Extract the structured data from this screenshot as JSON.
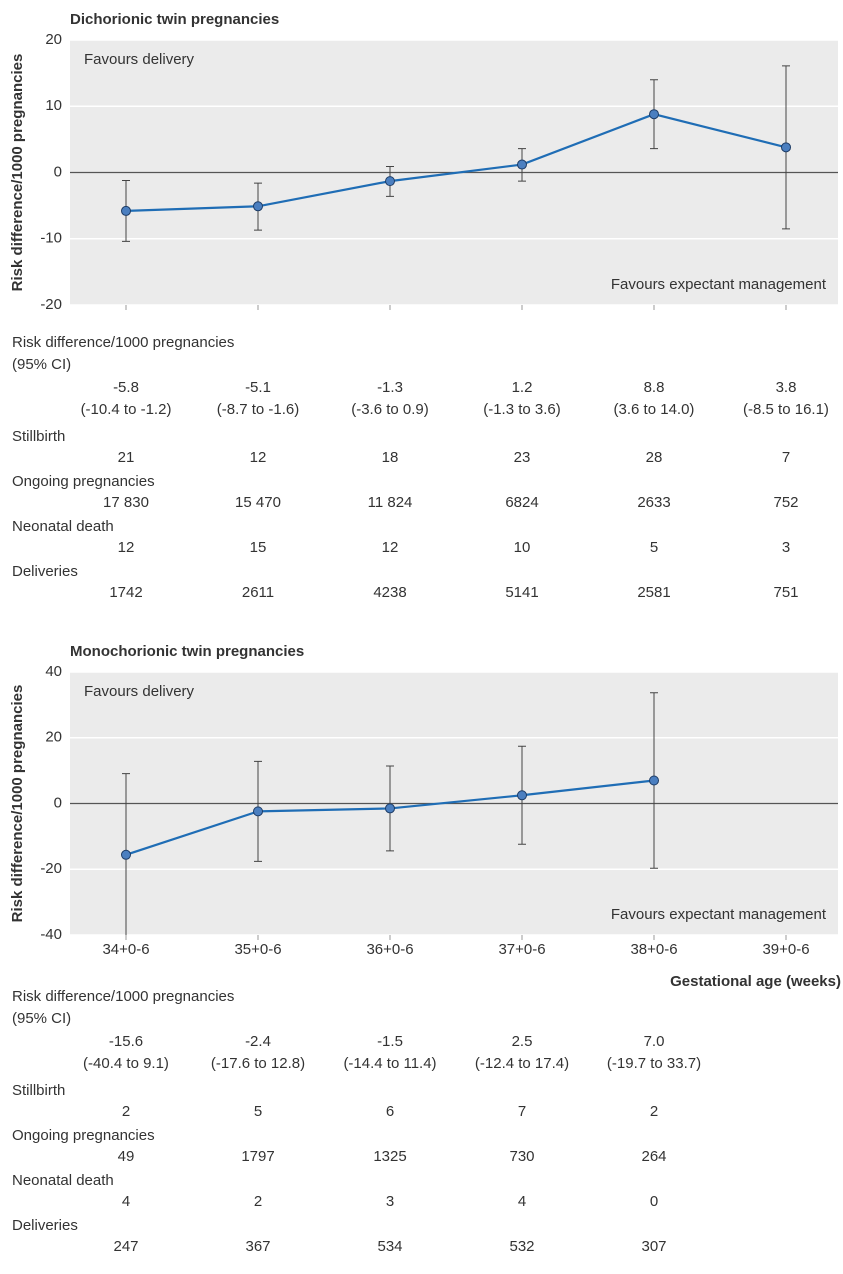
{
  "chart_data": [
    {
      "type": "line",
      "title": "Dichorionic twin pregnancies",
      "ylabel": "Risk difference/1000 pregnancies",
      "annotations": [
        "Favours delivery",
        "Favours expectant management"
      ],
      "categories": [
        null,
        null,
        null,
        null,
        null,
        null
      ],
      "values": [
        -5.8,
        -5.1,
        -1.3,
        1.2,
        8.8,
        3.8
      ],
      "ci_low": [
        -10.4,
        -8.7,
        -3.6,
        -1.3,
        3.6,
        -8.5
      ],
      "ci_high": [
        -1.2,
        -1.6,
        0.9,
        3.6,
        14.0,
        16.1
      ],
      "ci_labels": [
        "(-10.4 to -1.2)",
        "(-8.7 to -1.6)",
        "(-3.6 to 0.9)",
        "(-1.3 to 3.6)",
        "(3.6 to 14.0)",
        "(-8.5 to 16.1)"
      ],
      "ylim": [
        -20,
        20
      ],
      "yticks": [
        -20,
        -10,
        0,
        10,
        20
      ],
      "grid": true,
      "color": "#1f6db5",
      "table": {
        "ci_heading": [
          "Risk difference/1000 pregnancies",
          "(95% CI)"
        ],
        "rows": [
          {
            "label": "Stillbirth",
            "values": [
              21,
              12,
              18,
              23,
              28,
              7
            ]
          },
          {
            "label": "Ongoing pregnancies",
            "values": [
              {
                "value": 17830,
                "label": "17 830"
              },
              {
                "value": 15470,
                "label": "15 470"
              },
              {
                "value": 11824,
                "label": "11 824"
              },
              6824,
              2633,
              752
            ]
          },
          {
            "label": "Neonatal death",
            "values": [
              12,
              15,
              12,
              10,
              5,
              3
            ]
          },
          {
            "label": "Deliveries",
            "values": [
              1742,
              2611,
              4238,
              5141,
              2581,
              751
            ]
          }
        ]
      }
    },
    {
      "type": "line",
      "title": "Monochorionic twin pregnancies",
      "ylabel": "Risk difference/1000 pregnancies",
      "xlabel": "Gestational age (weeks)",
      "annotations": [
        "Favours delivery",
        "Favours expectant management"
      ],
      "categories": [
        "34+0-6",
        "35+0-6",
        "36+0-6",
        "37+0-6",
        "38+0-6",
        "39+0-6"
      ],
      "values": [
        -15.6,
        -2.4,
        -1.5,
        2.5,
        7.0,
        null
      ],
      "value_labels": [
        "-15.6",
        "-2.4",
        "-1.5",
        "2.5",
        "7.0",
        null
      ],
      "ci_low": [
        -40.4,
        -17.6,
        -14.4,
        -12.4,
        -19.7,
        null
      ],
      "ci_high": [
        9.1,
        12.8,
        11.4,
        17.4,
        33.7,
        null
      ],
      "ci_labels": [
        "(-40.4 to 9.1)",
        "(-17.6 to 12.8)",
        "(-14.4 to 11.4)",
        "(-12.4 to 17.4)",
        "(-19.7 to 33.7)",
        null
      ],
      "ylim": [
        -40,
        40
      ],
      "yticks": [
        -40,
        -20,
        0,
        20,
        40
      ],
      "grid": true,
      "color": "#1f6db5",
      "table": {
        "ci_heading": [
          "Risk difference/1000 pregnancies",
          "(95% CI)"
        ],
        "rows": [
          {
            "label": "Stillbirth",
            "values": [
              2,
              5,
              6,
              7,
              2
            ]
          },
          {
            "label": "Ongoing pregnancies",
            "values": [
              49,
              1797,
              1325,
              730,
              264
            ]
          },
          {
            "label": "Neonatal death",
            "values": [
              4,
              2,
              3,
              4,
              0
            ]
          },
          {
            "label": "Deliveries",
            "values": [
              247,
              367,
              534,
              532,
              307
            ]
          }
        ]
      }
    }
  ]
}
